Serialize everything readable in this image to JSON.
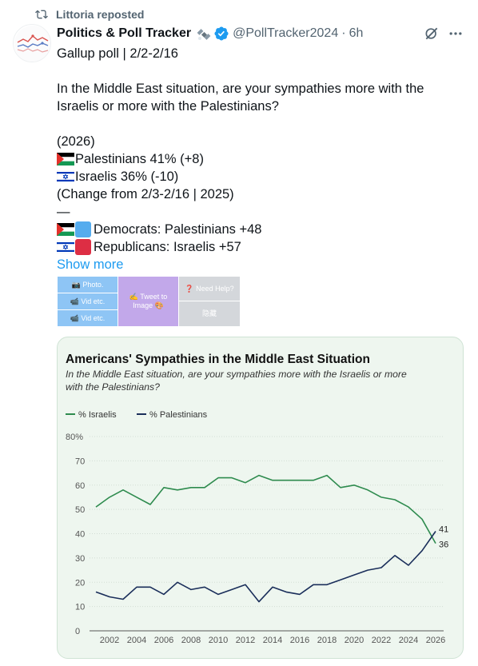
{
  "repost": {
    "icon": "repost-icon",
    "text": "Littoria reposted"
  },
  "author": {
    "name": "Politics & Poll Tracker",
    "emoji": "satellite-emoji",
    "verified_color": "#1d9bf0",
    "handle": "@PollTracker2024",
    "separator": "·",
    "time": "6h"
  },
  "post": {
    "line1": "Gallup poll | 2/2-2/16",
    "question_line1": "In the Middle East situation, are your sympathies more with the",
    "question_line2": "Israelis or more with the Palestinians?",
    "year_line": "(2026)",
    "palestinians_line": "Palestinians 41% (+8)",
    "israelis_line": "Israelis 36% (-10)",
    "change_line": "(Change from 2/3-2/16 | 2025)",
    "dash_line": "—",
    "democrats_line": "Democrats: Palestinians +48",
    "republicans_line": "Republicans: Israelis +57",
    "show_more": "Show more",
    "democrat_color": "#55acee",
    "republican_color": "#dd2e44"
  },
  "attach_grid": {
    "photo": "📷 Photo.",
    "vid1": "📹 Vid etc.",
    "vid2": "📹 Vid etc.",
    "tweet_to_image_l1": "✍️ Tweet to",
    "tweet_to_image_l2": "Image 🎨",
    "need_help": "❓ Need Help?",
    "hide": "隐藏"
  },
  "chart_data": {
    "type": "line",
    "title": "Americans' Sympathies in the Middle East Situation",
    "subtitle_line1": "In the Middle East situation, are your sympathies more with the Israelis or more",
    "subtitle_line2": "with the Palestinians?",
    "x": [
      2001,
      2002,
      2003,
      2004,
      2005,
      2006,
      2007,
      2008,
      2009,
      2010,
      2011,
      2012,
      2013,
      2014,
      2015,
      2016,
      2017,
      2018,
      2019,
      2020,
      2021,
      2022,
      2023,
      2024,
      2025,
      2026
    ],
    "series": [
      {
        "name": "% Israelis",
        "color": "#2e8b4e",
        "values": [
          51,
          55,
          58,
          55,
          52,
          59,
          58,
          59,
          59,
          63,
          63,
          61,
          64,
          62,
          62,
          62,
          62,
          64,
          59,
          60,
          58,
          55,
          54,
          51,
          46,
          36
        ]
      },
      {
        "name": "% Palestinians",
        "color": "#1a2e5a",
        "values": [
          16,
          14,
          13,
          18,
          18,
          15,
          20,
          17,
          18,
          15,
          17,
          19,
          12,
          18,
          16,
          15,
          19,
          19,
          21,
          23,
          25,
          26,
          31,
          27,
          33,
          41
        ]
      }
    ],
    "y_ticks": [
      "80%",
      "70",
      "60",
      "50",
      "40",
      "30",
      "20",
      "10",
      "0"
    ],
    "x_ticks": [
      "2002",
      "2004",
      "2006",
      "2008",
      "2010",
      "2012",
      "2014",
      "2016",
      "2018",
      "2020",
      "2022",
      "2024",
      "2026"
    ],
    "end_labels": {
      "palestinians": "41",
      "israelis": "36"
    },
    "ylim": [
      0,
      80
    ],
    "xlim": [
      2001,
      2026
    ],
    "legend": "top-left",
    "grid": true
  }
}
